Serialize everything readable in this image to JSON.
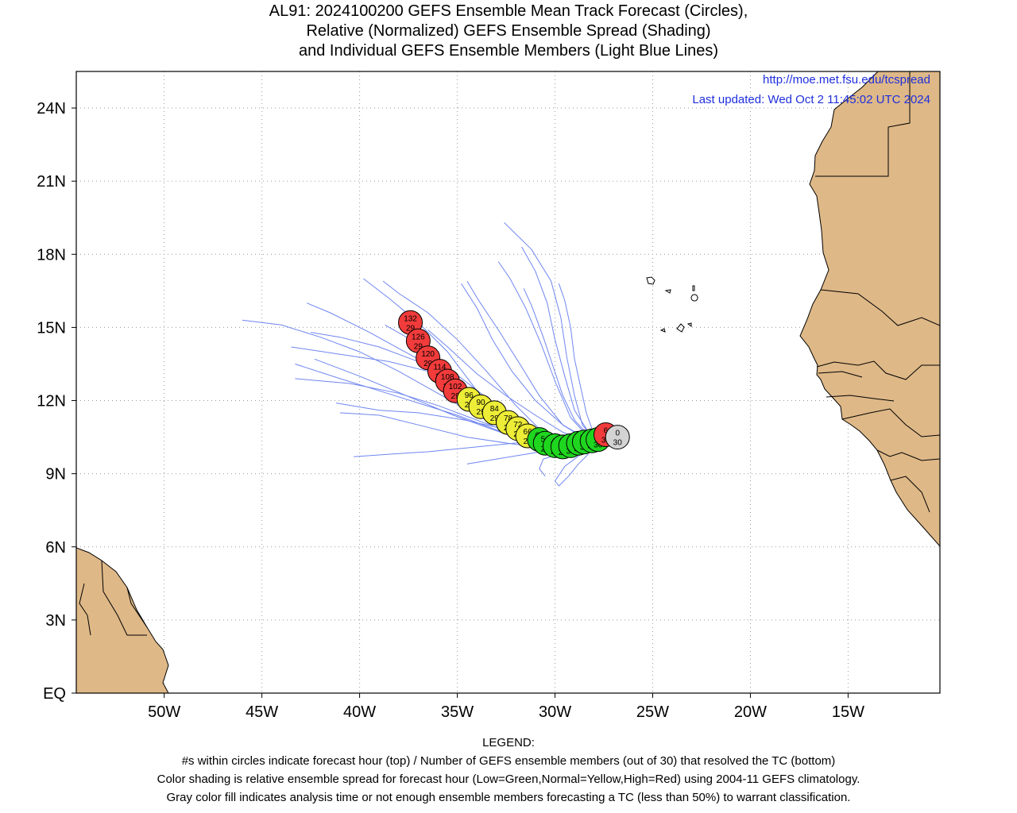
{
  "title_lines": [
    "AL91: 2024100200 GEFS Ensemble Mean Track Forecast (Circles),",
    "Relative (Normalized) GEFS Ensemble Spread (Shading)",
    "and Individual GEFS Ensemble Members (Light Blue Lines)"
  ],
  "credit": {
    "url": "http://moe.met.fsu.edu/tcspread",
    "updated": "Last updated: Wed Oct  2 11:45:02 UTC 2024"
  },
  "legend": {
    "heading": "LEGEND:",
    "lines": [
      "#s within circles indicate forecast hour (top) / Number of GEFS ensemble members (out of 30) that resolved the TC (bottom)",
      "Color shading is relative ensemble spread for forecast hour (Low=Green,Normal=Yellow,High=Red) using 2004-11 GEFS climatology.",
      "Gray color fill indicates analysis time or not enough ensemble members forecasting a TC (less than 50%) to warrant classification."
    ]
  },
  "colors": {
    "land": "#deb887",
    "ocean": "#ffffff",
    "member_line": "#6f86f0",
    "low_spread": "#1fd61f",
    "normal_spread": "#eded37",
    "high_spread": "#f23b3b",
    "analysis": "#d3d3d3",
    "credit_text": "#1f2fdc"
  },
  "chart_data": {
    "type": "scatter",
    "title": "AL91: 2024100200 GEFS Ensemble Mean Track Forecast (Circles), Relative (Normalized) GEFS Ensemble Spread (Shading) and Individual GEFS Ensemble Members (Light Blue Lines)",
    "xlabel": "",
    "ylabel": "",
    "xlim": [
      -54.5,
      -10.3
    ],
    "ylim": [
      0,
      25.5
    ],
    "x_ticks": [
      {
        "value": -50,
        "label": "50W"
      },
      {
        "value": -45,
        "label": "45W"
      },
      {
        "value": -40,
        "label": "40W"
      },
      {
        "value": -35,
        "label": "35W"
      },
      {
        "value": -30,
        "label": "30W"
      },
      {
        "value": -25,
        "label": "25W"
      },
      {
        "value": -20,
        "label": "20W"
      },
      {
        "value": -15,
        "label": "15W"
      }
    ],
    "y_ticks": [
      {
        "value": 0,
        "label": "EQ"
      },
      {
        "value": 3,
        "label": "3N"
      },
      {
        "value": 6,
        "label": "6N"
      },
      {
        "value": 9,
        "label": "9N"
      },
      {
        "value": 12,
        "label": "12N"
      },
      {
        "value": 15,
        "label": "15N"
      },
      {
        "value": 18,
        "label": "18N"
      },
      {
        "value": 21,
        "label": "21N"
      },
      {
        "value": 24,
        "label": "24N"
      }
    ],
    "grid": true,
    "mean_track": [
      {
        "hour": 0,
        "members": 30,
        "lon": -26.8,
        "lat": 10.5,
        "spread": "gray"
      },
      {
        "hour": 6,
        "members": 30,
        "lon": -27.4,
        "lat": 10.6,
        "spread": "high"
      },
      {
        "hour": 12,
        "members": 30,
        "lon": -27.8,
        "lat": 10.4,
        "spread": "low"
      },
      {
        "hour": 18,
        "members": 30,
        "lon": -28.1,
        "lat": 10.35,
        "spread": "low"
      },
      {
        "hour": 24,
        "members": 30,
        "lon": -28.5,
        "lat": 10.3,
        "spread": "low"
      },
      {
        "hour": 30,
        "members": 30,
        "lon": -28.8,
        "lat": 10.25,
        "spread": "low"
      },
      {
        "hour": 36,
        "members": 30,
        "lon": -29.2,
        "lat": 10.15,
        "spread": "low"
      },
      {
        "hour": 42,
        "members": 29,
        "lon": -29.6,
        "lat": 10.1,
        "spread": "low"
      },
      {
        "hour": 48,
        "members": 29,
        "lon": -30.0,
        "lat": 10.15,
        "spread": "low"
      },
      {
        "hour": 54,
        "members": 29,
        "lon": -30.5,
        "lat": 10.25,
        "spread": "low"
      },
      {
        "hour": 60,
        "members": 29,
        "lon": -30.8,
        "lat": 10.4,
        "spread": "low"
      },
      {
        "hour": 66,
        "members": 29,
        "lon": -31.4,
        "lat": 10.55,
        "spread": "normal"
      },
      {
        "hour": 72,
        "members": 29,
        "lon": -31.9,
        "lat": 10.85,
        "spread": "normal"
      },
      {
        "hour": 78,
        "members": 29,
        "lon": -32.4,
        "lat": 11.1,
        "spread": "normal"
      },
      {
        "hour": 84,
        "members": 29,
        "lon": -33.1,
        "lat": 11.5,
        "spread": "normal"
      },
      {
        "hour": 90,
        "members": 29,
        "lon": -33.8,
        "lat": 11.75,
        "spread": "normal"
      },
      {
        "hour": 96,
        "members": 29,
        "lon": -34.4,
        "lat": 12.05,
        "spread": "normal"
      },
      {
        "hour": 102,
        "members": 29,
        "lon": -35.1,
        "lat": 12.4,
        "spread": "high"
      },
      {
        "hour": 108,
        "members": 29,
        "lon": -35.5,
        "lat": 12.8,
        "spread": "high"
      },
      {
        "hour": 114,
        "members": 29,
        "lon": -35.9,
        "lat": 13.2,
        "spread": "high"
      },
      {
        "hour": 120,
        "members": 29,
        "lon": -36.5,
        "lat": 13.75,
        "spread": "high"
      },
      {
        "hour": 126,
        "members": 29,
        "lon": -37.0,
        "lat": 14.45,
        "spread": "high"
      },
      {
        "hour": 132,
        "members": 29,
        "lon": -37.4,
        "lat": 15.2,
        "spread": "high"
      }
    ],
    "member_tracks": [
      [
        [
          -27.0,
          10.3
        ],
        [
          -28.5,
          10.2
        ],
        [
          -30.0,
          10.3
        ],
        [
          -32.0,
          10.6
        ],
        [
          -34.0,
          11.4
        ],
        [
          -36.0,
          12.3
        ],
        [
          -38.0,
          13.2
        ],
        [
          -40.0,
          14.0
        ],
        [
          -42.0,
          14.6
        ],
        [
          -44.0,
          15.1
        ],
        [
          -46.0,
          15.3
        ]
      ],
      [
        [
          -27.0,
          10.3
        ],
        [
          -29.0,
          10.4
        ],
        [
          -31.0,
          10.8
        ],
        [
          -33.0,
          11.6
        ],
        [
          -35.0,
          12.6
        ],
        [
          -37.0,
          13.6
        ],
        [
          -39.0,
          14.2
        ],
        [
          -41.0,
          14.6
        ],
        [
          -42.5,
          14.8
        ]
      ],
      [
        [
          -27.0,
          10.3
        ],
        [
          -29.0,
          10.2
        ],
        [
          -31.0,
          10.4
        ],
        [
          -33.0,
          11.2
        ],
        [
          -35.0,
          12.5
        ],
        [
          -37.0,
          13.7
        ],
        [
          -39.5,
          14.8
        ],
        [
          -41.5,
          15.6
        ],
        [
          -42.7,
          16.0
        ]
      ],
      [
        [
          -27.0,
          10.3
        ],
        [
          -28.8,
          10.0
        ],
        [
          -30.5,
          10.2
        ],
        [
          -32.5,
          11.0
        ],
        [
          -34.0,
          12.4
        ],
        [
          -35.5,
          14.0
        ],
        [
          -37.0,
          15.2
        ],
        [
          -38.5,
          16.2
        ],
        [
          -39.8,
          17.0
        ]
      ],
      [
        [
          -27.0,
          10.3
        ],
        [
          -28.8,
          10.2
        ],
        [
          -30.5,
          10.6
        ],
        [
          -32.0,
          11.8
        ],
        [
          -33.5,
          13.2
        ],
        [
          -35.0,
          14.5
        ],
        [
          -36.5,
          15.6
        ],
        [
          -38.0,
          16.4
        ],
        [
          -38.8,
          16.9
        ]
      ],
      [
        [
          -27.0,
          10.3
        ],
        [
          -29.0,
          10.2
        ],
        [
          -31.0,
          10.5
        ],
        [
          -32.5,
          11.4
        ],
        [
          -34.5,
          12.4
        ],
        [
          -36.5,
          13.2
        ],
        [
          -38.5,
          13.6
        ],
        [
          -41.0,
          13.9
        ],
        [
          -43.5,
          14.2
        ]
      ],
      [
        [
          -27.0,
          10.3
        ],
        [
          -29.0,
          10.1
        ],
        [
          -31.0,
          10.3
        ],
        [
          -33.0,
          10.8
        ],
        [
          -35.0,
          11.4
        ],
        [
          -37.0,
          11.9
        ],
        [
          -39.0,
          12.4
        ],
        [
          -41.0,
          12.9
        ],
        [
          -43.3,
          13.5
        ]
      ],
      [
        [
          -27.0,
          10.3
        ],
        [
          -29.5,
          10.2
        ],
        [
          -32.0,
          10.6
        ],
        [
          -34.0,
          11.2
        ],
        [
          -36.0,
          11.8
        ],
        [
          -38.0,
          12.3
        ],
        [
          -40.5,
          12.7
        ],
        [
          -43.3,
          12.9
        ]
      ],
      [
        [
          -27.0,
          10.3
        ],
        [
          -29.5,
          10.1
        ],
        [
          -32.0,
          10.2
        ],
        [
          -34.5,
          10.5
        ],
        [
          -37.0,
          11.0
        ],
        [
          -39.0,
          11.4
        ],
        [
          -41.0,
          11.5
        ]
      ],
      [
        [
          -27.0,
          10.3
        ],
        [
          -29.0,
          10.2
        ],
        [
          -31.5,
          10.3
        ],
        [
          -34.0,
          10.1
        ],
        [
          -36.5,
          9.9
        ],
        [
          -38.5,
          9.8
        ],
        [
          -40.3,
          9.7
        ]
      ],
      [
        [
          -27.0,
          10.3
        ],
        [
          -28.5,
          9.9
        ],
        [
          -29.5,
          9.3
        ],
        [
          -30.0,
          8.7
        ],
        [
          -29.8,
          8.5
        ],
        [
          -29.3,
          8.9
        ],
        [
          -28.8,
          9.4
        ],
        [
          -28.3,
          9.8
        ]
      ],
      [
        [
          -27.0,
          10.3
        ],
        [
          -28.0,
          10.4
        ],
        [
          -28.6,
          11.0
        ],
        [
          -29.0,
          12.2
        ],
        [
          -29.4,
          13.8
        ],
        [
          -29.7,
          15.4
        ],
        [
          -30.2,
          16.9
        ],
        [
          -31.2,
          18.2
        ],
        [
          -32.6,
          19.3
        ]
      ],
      [
        [
          -27.0,
          10.3
        ],
        [
          -28.2,
          10.6
        ],
        [
          -29.0,
          11.6
        ],
        [
          -29.5,
          13.0
        ],
        [
          -30.0,
          14.5
        ],
        [
          -30.4,
          16.0
        ],
        [
          -31.0,
          17.3
        ],
        [
          -31.7,
          18.3
        ]
      ],
      [
        [
          -27.0,
          10.3
        ],
        [
          -28.3,
          10.5
        ],
        [
          -29.2,
          11.3
        ],
        [
          -30.0,
          12.8
        ],
        [
          -30.7,
          14.3
        ],
        [
          -31.5,
          15.8
        ],
        [
          -32.3,
          17.0
        ],
        [
          -32.9,
          17.7
        ]
      ],
      [
        [
          -27.0,
          10.3
        ],
        [
          -28.4,
          10.4
        ],
        [
          -29.6,
          11.0
        ],
        [
          -30.8,
          12.2
        ],
        [
          -31.8,
          13.5
        ],
        [
          -32.9,
          14.9
        ],
        [
          -33.9,
          16.1
        ],
        [
          -34.5,
          16.9
        ]
      ],
      [
        [
          -27.0,
          10.3
        ],
        [
          -28.3,
          10.3
        ],
        [
          -29.6,
          10.7
        ],
        [
          -31.0,
          11.4
        ],
        [
          -32.5,
          12.2
        ],
        [
          -34.0,
          13.1
        ],
        [
          -35.5,
          14.2
        ],
        [
          -36.5,
          14.9
        ]
      ],
      [
        [
          -27.0,
          10.3
        ],
        [
          -28.0,
          10.6
        ],
        [
          -28.4,
          11.5
        ],
        [
          -28.7,
          12.6
        ],
        [
          -29.0,
          13.7
        ],
        [
          -29.2,
          15.0
        ],
        [
          -29.5,
          16.1
        ],
        [
          -29.8,
          16.8
        ]
      ],
      [
        [
          -27.0,
          10.3
        ],
        [
          -28.5,
          10.1
        ],
        [
          -30.0,
          10.0
        ],
        [
          -31.5,
          9.8
        ],
        [
          -33.0,
          9.6
        ],
        [
          -34.5,
          9.4
        ]
      ],
      [
        [
          -27.0,
          10.3
        ],
        [
          -28.6,
          10.0
        ],
        [
          -29.8,
          9.8
        ],
        [
          -30.6,
          9.6
        ],
        [
          -30.8,
          9.2
        ],
        [
          -30.5,
          8.9
        ]
      ],
      [
        [
          -27.0,
          10.3
        ],
        [
          -28.6,
          10.2
        ],
        [
          -30.4,
          10.4
        ],
        [
          -32.4,
          10.8
        ],
        [
          -34.6,
          11.2
        ],
        [
          -37.0,
          11.5
        ],
        [
          -39.0,
          11.6
        ],
        [
          -41.2,
          11.9
        ]
      ],
      [
        [
          -27.0,
          10.3
        ],
        [
          -28.7,
          10.1
        ],
        [
          -30.6,
          10.2
        ],
        [
          -32.8,
          10.7
        ],
        [
          -35.2,
          11.4
        ],
        [
          -37.6,
          12.2
        ],
        [
          -40.0,
          13.0
        ],
        [
          -42.3,
          13.7
        ]
      ],
      [
        [
          -27.0,
          10.3
        ],
        [
          -28.3,
          10.4
        ],
        [
          -29.6,
          11.0
        ],
        [
          -31.0,
          12.0
        ],
        [
          -32.2,
          13.2
        ],
        [
          -33.2,
          14.5
        ],
        [
          -34.0,
          15.8
        ],
        [
          -34.8,
          16.8
        ]
      ],
      [
        [
          -27.0,
          10.3
        ],
        [
          -28.4,
          10.2
        ],
        [
          -29.8,
          10.4
        ],
        [
          -31.4,
          11.0
        ],
        [
          -33.0,
          11.8
        ],
        [
          -34.6,
          12.8
        ],
        [
          -36.2,
          13.8
        ],
        [
          -37.6,
          14.6
        ],
        [
          -38.7,
          15.1
        ]
      ],
      [
        [
          -27.0,
          10.3
        ],
        [
          -28.2,
          10.5
        ],
        [
          -29.0,
          11.2
        ],
        [
          -29.6,
          12.2
        ],
        [
          -30.1,
          13.4
        ],
        [
          -30.6,
          14.6
        ],
        [
          -31.2,
          15.9
        ],
        [
          -31.6,
          16.6
        ]
      ]
    ],
    "islands_note": "Cabo Verde"
  }
}
